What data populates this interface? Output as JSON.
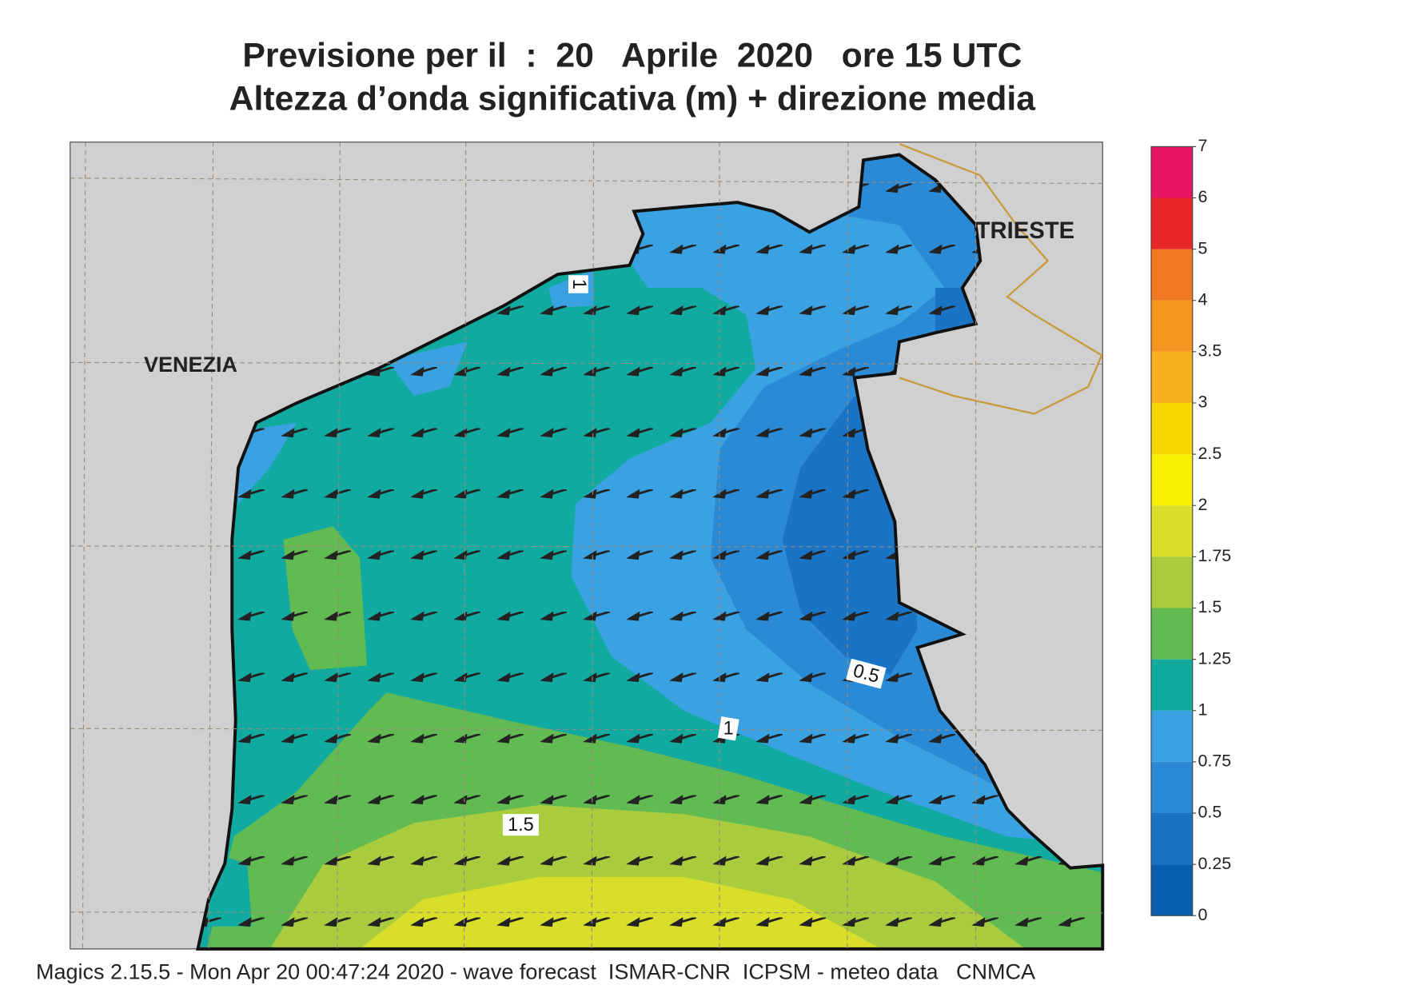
{
  "header": {
    "title": "Previsione per il  :  20   Aprile  2020   ore 15 UTC",
    "subtitle": "Altezza d’onda significativa (m) + direzione media"
  },
  "map": {
    "places": [
      "VENEZIA",
      "TRIESTE"
    ],
    "contour_labels": [
      "1",
      "0.5",
      "1",
      "1.5"
    ]
  },
  "legend": {
    "levels": [
      0,
      0.25,
      0.5,
      0.75,
      1,
      1.25,
      1.5,
      1.75,
      2,
      2.5,
      3,
      3.5,
      4,
      5,
      6,
      7
    ],
    "colors": [
      "#0a5eb0",
      "#1a74c6",
      "#2a8ad6",
      "#3aa2e2",
      "#10aaa0",
      "#62ba52",
      "#a8cc3e",
      "#d8de2a",
      "#f8f000",
      "#f8d400",
      "#f8b020",
      "#f89420",
      "#f07820",
      "#e82828",
      "#e81464"
    ]
  },
  "footer": "Magics 2.15.5 - Mon Apr 20 00:47:24 2020 - wave forecast  ISMAR-CNR  ICPSM - meteo data   CNMCA"
}
